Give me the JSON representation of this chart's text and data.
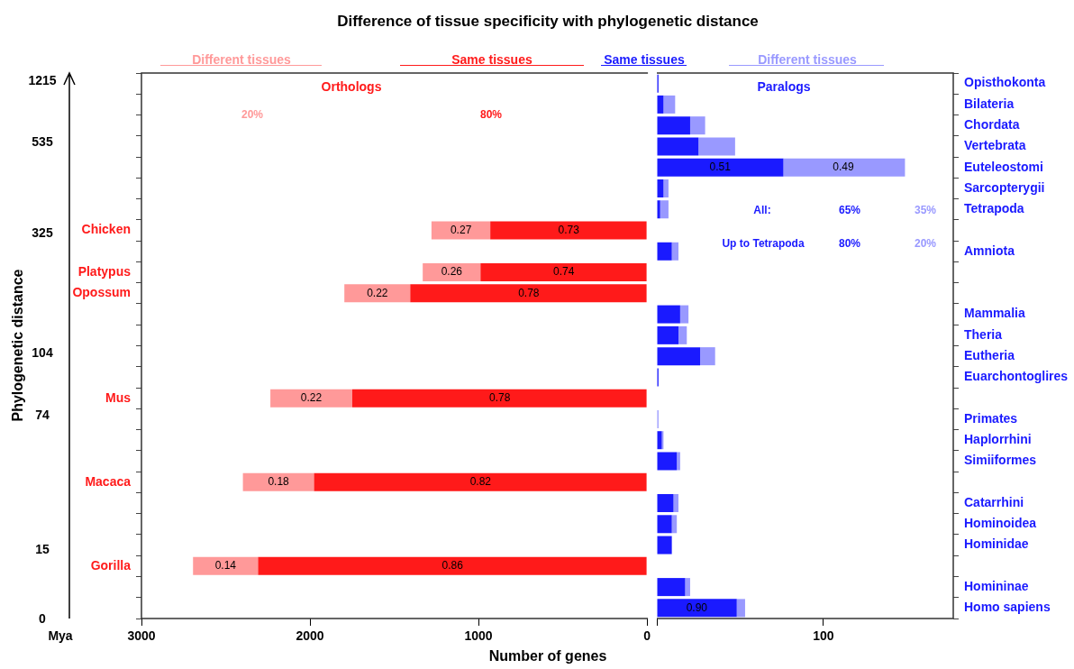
{
  "chart_data": [
    {
      "type": "bar",
      "orientation": "horizontal",
      "stacked": true,
      "title": "Difference of tissue specificity with phylogenetic distance",
      "xlabel": "Number of genes",
      "ylabel": "Phylogenetic distance",
      "categories": [
        null,
        null,
        null,
        null,
        null,
        null,
        null,
        "Chicken",
        null,
        "Platypus",
        "Opossum",
        null,
        null,
        null,
        null,
        "Mus",
        null,
        null,
        null,
        "Macaca",
        null,
        null,
        null,
        "Gorilla",
        null,
        null
      ],
      "series": [
        {
          "name": "Same tissues",
          "color": "#ff1a1a",
          "values": [
            null,
            null,
            null,
            null,
            null,
            null,
            null,
            930,
            null,
            988,
            1405,
            null,
            null,
            null,
            null,
            1749,
            null,
            null,
            null,
            1976,
            null,
            null,
            null,
            2308,
            null,
            null
          ]
        },
        {
          "name": "Different tissues",
          "color": "#ff9999",
          "values": [
            null,
            null,
            null,
            null,
            null,
            null,
            null,
            349,
            null,
            343,
            391,
            null,
            null,
            null,
            null,
            486,
            null,
            null,
            null,
            422,
            null,
            null,
            null,
            386,
            null,
            null
          ]
        }
      ],
      "xlim": [
        3000,
        0
      ],
      "xticks": [
        3000,
        2000,
        1000,
        0
      ],
      "annotations": [
        "Orthologs",
        "20%",
        "80%",
        "Mya",
        "1215",
        "535",
        "325",
        "104",
        "74",
        "15",
        "0",
        {
          "text": "0.73",
          "x": 465,
          "y": "Chicken"
        },
        {
          "text": "0.27",
          "x": 1104,
          "y": "Chicken"
        },
        {
          "text": "0.74",
          "x": 494,
          "y": "Platypus"
        },
        {
          "text": "0.26",
          "x": 1159,
          "y": "Platypus"
        },
        {
          "text": "0.78",
          "x": 702,
          "y": "Opossum"
        },
        {
          "text": "0.22",
          "x": 1600,
          "y": "Opossum"
        },
        {
          "text": "0.78",
          "x": 874,
          "y": "Mus"
        },
        {
          "text": "0.22",
          "x": 1992,
          "y": "Mus"
        },
        {
          "text": "0.82",
          "x": 988,
          "y": "Macaca"
        },
        {
          "text": "0.18",
          "x": 2187,
          "y": "Macaca"
        },
        {
          "text": "0.86",
          "x": 1154,
          "y": "Gorilla"
        },
        {
          "text": "0.14",
          "x": 2501,
          "y": "Gorilla"
        }
      ],
      "legend": "top",
      "grid": false
    },
    {
      "type": "bar",
      "orientation": "horizontal",
      "stacked": true,
      "categories": [
        "Opisthokonta",
        "Bilateria",
        "Chordata",
        "Vertebrata",
        "Euteleostomi",
        "Sarcopterygii",
        "Tetrapoda",
        null,
        "Amniota",
        null,
        null,
        "Mammalia",
        "Theria",
        "Eutheria",
        "Euarchontoglires",
        null,
        "Primates",
        "Haplorrhini",
        "Simiiformes",
        null,
        "Catarrhini",
        "Hominoidea",
        "Hominidae",
        null,
        "Homininae",
        "Homo sapiens"
      ],
      "series": [
        {
          "name": "Same tissues",
          "color": "#1a1aff",
          "values": [
            1,
            4,
            20,
            25,
            76,
            4,
            2,
            null,
            9,
            null,
            null,
            14,
            13,
            26,
            1,
            null,
            0,
            3,
            12,
            null,
            10,
            9,
            9,
            null,
            17,
            48
          ]
        },
        {
          "name": "Different tissues",
          "color": "#9999ff",
          "values": [
            0,
            7,
            9,
            22,
            73,
            3,
            5,
            null,
            4,
            null,
            null,
            5,
            5,
            9,
            0,
            null,
            1,
            1,
            2,
            null,
            3,
            3,
            0,
            null,
            3,
            5
          ]
        }
      ],
      "xlim": [
        0,
        178
      ],
      "xticks": [
        {
          "value": 0,
          "label": null
        },
        100
      ],
      "annotations": [
        "Paralogs",
        "All:",
        "65%",
        "35%",
        "Up to Tetrapoda",
        "80%",
        "20%",
        {
          "text": "0.51",
          "x": 38,
          "y": "Euteleostomi"
        },
        {
          "text": "0.49",
          "x": 112,
          "y": "Euteleostomi"
        },
        {
          "text": "0.90",
          "x": 24,
          "y": "Homo sapiens"
        }
      ],
      "legend": "top",
      "grid": false
    }
  ]
}
